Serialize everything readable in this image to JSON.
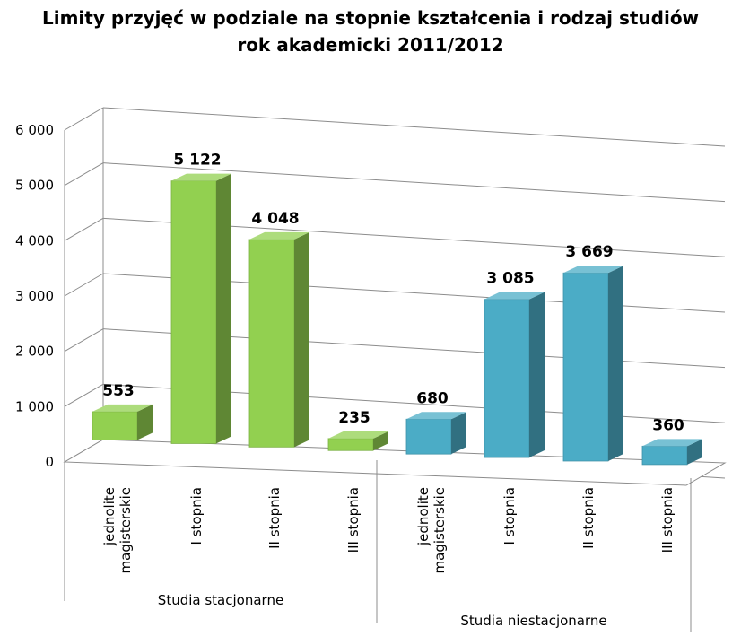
{
  "chart_data": {
    "type": "bar",
    "title_line1": "Limity przyjęć w podziale na stopnie kształcenia i rodzaj studiów",
    "title_line2": "rok akademicki 2011/2012",
    "ylim": [
      0,
      6000
    ],
    "y_ticks": [
      "0",
      "1 000",
      "2 000",
      "3 000",
      "4 000",
      "5 000",
      "6 000"
    ],
    "grid": true,
    "legend": "none",
    "groups": [
      {
        "label": "Studia stacjonarne",
        "color": "#92d050",
        "bars": [
          {
            "category": [
              "jednolite",
              "magisterskie"
            ],
            "value": 553,
            "label": "553"
          },
          {
            "category": [
              "I stopnia"
            ],
            "value": 5122,
            "label": "5 122"
          },
          {
            "category": [
              "II stopnia"
            ],
            "value": 4048,
            "label": "4 048"
          },
          {
            "category": [
              "III stopnia"
            ],
            "value": 235,
            "label": "235"
          }
        ]
      },
      {
        "label": "Studia niestacjonarne",
        "color": "#4bacc6",
        "bars": [
          {
            "category": [
              "jednolite",
              "magisterskie"
            ],
            "value": 680,
            "label": "680"
          },
          {
            "category": [
              "I stopnia"
            ],
            "value": 3085,
            "label": "3 085"
          },
          {
            "category": [
              "II stopnia"
            ],
            "value": 3669,
            "label": "3 669"
          },
          {
            "category": [
              "III stopnia"
            ],
            "value": 360,
            "label": "360"
          }
        ]
      }
    ]
  }
}
